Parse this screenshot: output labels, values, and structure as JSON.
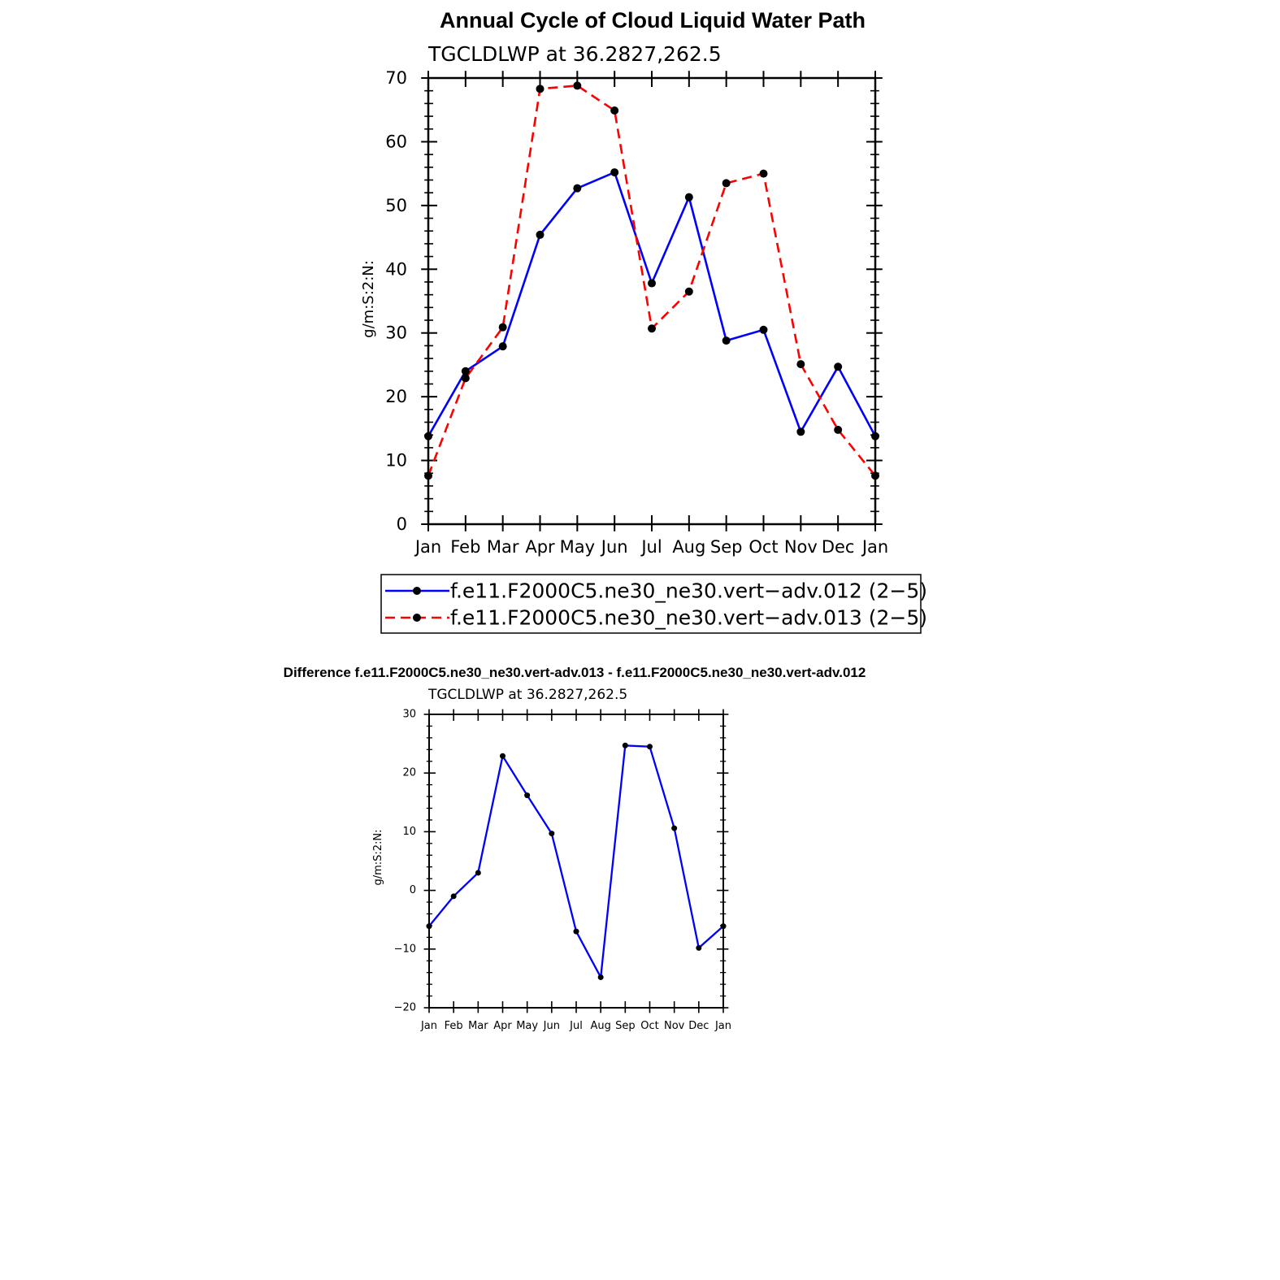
{
  "chart_data": [
    {
      "type": "line",
      "title": "Annual Cycle of Cloud Liquid Water Path",
      "subtitle": "TGCLDLWP  at  36.2827,262.5",
      "xlabel": "",
      "ylabel": "g/m:S:2:N:",
      "categories": [
        "Jan",
        "Feb",
        "Mar",
        "Apr",
        "May",
        "Jun",
        "Jul",
        "Aug",
        "Sep",
        "Oct",
        "Nov",
        "Dec",
        "Jan"
      ],
      "ylim": [
        0,
        70
      ],
      "yticks": [
        0,
        10,
        20,
        30,
        40,
        50,
        60,
        70
      ],
      "legend_position": "bottom",
      "series": [
        {
          "name": "f.e11.F2000C5.ne30_ne30.vert−adv.012 (2−5)",
          "color": "#0000ff",
          "dash": "solid",
          "values": [
            13.8,
            24.0,
            27.9,
            45.4,
            52.7,
            55.2,
            37.8,
            51.3,
            28.8,
            30.5,
            14.5,
            24.7,
            13.8
          ]
        },
        {
          "name": "f.e11.F2000C5.ne30_ne30.vert−adv.013 (2−5)",
          "color": "#ff0000",
          "dash": "dashed",
          "values": [
            7.6,
            22.9,
            30.9,
            68.3,
            68.8,
            64.9,
            30.7,
            36.5,
            53.5,
            55.0,
            25.1,
            14.8,
            7.6
          ]
        }
      ]
    },
    {
      "type": "line",
      "title": "Difference f.e11.F2000C5.ne30_ne30.vert-adv.013 - f.e11.F2000C5.ne30_ne30.vert-adv.012",
      "subtitle": "TGCLDLWP  at  36.2827,262.5",
      "xlabel": "",
      "ylabel": "g/m:S:2:N:",
      "categories": [
        "Jan",
        "Feb",
        "Mar",
        "Apr",
        "May",
        "Jun",
        "Jul",
        "Aug",
        "Sep",
        "Oct",
        "Nov",
        "Dec",
        "Jan"
      ],
      "ylim": [
        -20,
        30
      ],
      "yticks": [
        -20,
        -10,
        0,
        10,
        20,
        30
      ],
      "series": [
        {
          "color": "#0000ff",
          "dash": "solid",
          "values": [
            -6.1,
            -1.0,
            3.0,
            22.9,
            16.2,
            9.7,
            -7.0,
            -14.8,
            24.7,
            24.5,
            10.6,
            -9.8,
            -6.1
          ]
        }
      ]
    }
  ]
}
